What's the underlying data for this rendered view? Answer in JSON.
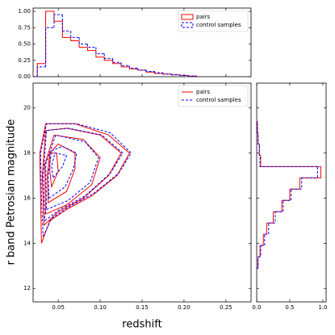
{
  "chart_data": [
    {
      "type": "histogram",
      "orientation": "vertical",
      "bins": [
        0.025,
        0.035,
        0.045,
        0.055,
        0.065,
        0.075,
        0.085,
        0.095,
        0.105,
        0.115,
        0.125,
        0.135,
        0.145,
        0.155,
        0.165,
        0.175,
        0.185,
        0.195,
        0.205,
        0.215
      ],
      "series": [
        {
          "name": "pairs",
          "color": "#ff0000",
          "linestyle": "solid",
          "values": [
            0.2,
            1.0,
            0.85,
            0.6,
            0.55,
            0.45,
            0.4,
            0.3,
            0.25,
            0.2,
            0.15,
            0.12,
            0.1,
            0.07,
            0.05,
            0.04,
            0.03,
            0.02,
            0.01
          ]
        },
        {
          "name": "control samples",
          "color": "#0000ff",
          "linestyle": "dashed",
          "values": [
            0.15,
            0.75,
            0.95,
            0.7,
            0.6,
            0.5,
            0.45,
            0.35,
            0.28,
            0.22,
            0.17,
            0.13,
            0.1,
            0.08,
            0.06,
            0.04,
            0.03,
            0.02,
            0.01
          ]
        }
      ],
      "xlim": [
        0.02,
        0.28
      ],
      "xticks": [
        0.05,
        {
          "value": 0.1,
          "label": "0.10"
        },
        0.15,
        {
          "value": 0.2,
          "label": "0.20"
        },
        0.25
      ],
      "xtick_labels": false,
      "ylim": [
        0,
        1.05
      ],
      "yticks": [
        {
          "value": 0,
          "label": "0.00"
        },
        0.25,
        {
          "value": 0.5,
          "label": "0.50"
        },
        0.75,
        {
          "value": 1,
          "label": "1.00"
        }
      ],
      "ytick_labels": true,
      "legend": "upper right",
      "legend_style": "patch"
    },
    {
      "type": "contour",
      "x_label": "redshift",
      "y_label": "r band Petrosian magnitude",
      "series": [
        {
          "name": "pairs",
          "color": "#ff0000",
          "linestyle": "solid",
          "contours": [
            {
              "x": [
                0.03,
                0.04,
                0.06,
                0.09,
                0.12,
                0.135,
                0.11,
                0.07,
                0.035,
                0.028,
                0.029
              ],
              "y": [
                14.0,
                15.0,
                15.5,
                16.1,
                17.0,
                18.0,
                18.8,
                19.3,
                19.3,
                18.0,
                16.0
              ]
            },
            {
              "x": [
                0.033,
                0.05,
                0.08,
                0.11,
                0.125,
                0.1,
                0.06,
                0.035,
                0.031
              ],
              "y": [
                14.8,
                15.4,
                16.0,
                17.0,
                18.0,
                18.8,
                19.1,
                19.0,
                17.0
              ]
            },
            {
              "x": [
                0.035,
                0.06,
                0.09,
                0.1,
                0.08,
                0.045,
                0.034
              ],
              "y": [
                15.3,
                15.7,
                16.6,
                17.8,
                18.6,
                18.8,
                17.5
              ]
            },
            {
              "x": [
                0.038,
                0.06,
                0.07,
                0.07,
                0.05,
                0.04,
                0.037
              ],
              "y": [
                15.8,
                16.3,
                17.3,
                18.0,
                18.4,
                18.0,
                17.0
              ]
            },
            {
              "x": [
                0.042,
                0.05,
                0.048,
                0.04,
                0.04
              ],
              "y": [
                16.5,
                17.2,
                18.0,
                18.0,
                17.2
              ]
            }
          ]
        },
        {
          "name": "control samples",
          "color": "#0000ff",
          "linestyle": "dashed",
          "contours": [
            {
              "x": [
                0.032,
                0.042,
                0.062,
                0.092,
                0.122,
                0.137,
                0.112,
                0.072,
                0.036,
                0.029,
                0.03
              ],
              "y": [
                14.3,
                15.1,
                15.6,
                16.2,
                17.1,
                18.0,
                18.9,
                19.3,
                19.3,
                18.0,
                16.0
              ]
            },
            {
              "x": [
                0.034,
                0.052,
                0.082,
                0.112,
                0.127,
                0.102,
                0.062,
                0.036,
                0.032
              ],
              "y": [
                15.0,
                15.5,
                16.1,
                17.1,
                18.0,
                18.8,
                19.1,
                19.0,
                17.0
              ]
            },
            {
              "x": [
                0.036,
                0.062,
                0.088,
                0.098,
                0.082,
                0.047,
                0.035
              ],
              "y": [
                15.5,
                15.9,
                16.7,
                17.8,
                18.5,
                18.8,
                17.5
              ]
            },
            {
              "x": [
                0.039,
                0.058,
                0.068,
                0.072,
                0.055,
                0.042,
                0.038
              ],
              "y": [
                16.0,
                16.5,
                17.3,
                18.0,
                18.3,
                18.1,
                17.0
              ]
            },
            {
              "x": [
                0.044,
                0.055,
                0.06,
                0.046,
                0.042
              ],
              "y": [
                16.9,
                17.4,
                17.9,
                18.0,
                17.4
              ]
            }
          ]
        }
      ],
      "xlim": [
        0.02,
        0.28
      ],
      "xticks": [
        0.05,
        {
          "value": 0.1,
          "label": "0.10"
        },
        0.15,
        {
          "value": 0.2,
          "label": "0.20"
        },
        0.25
      ],
      "xtick_labels": true,
      "ylim": [
        11.4,
        21.1
      ],
      "yticks": [
        12,
        14,
        16,
        18,
        20
      ],
      "ytick_labels": true,
      "legend": "upper right",
      "legend_style": "line"
    },
    {
      "type": "histogram",
      "orientation": "horizontal",
      "bins": [
        12.9,
        13.4,
        13.9,
        14.4,
        14.9,
        15.4,
        15.9,
        16.4,
        16.9,
        17.4,
        17.9,
        18.4,
        18.9,
        19.4
      ],
      "series": [
        {
          "name": "pairs",
          "color": "#ff0000",
          "linestyle": "solid",
          "values": [
            0.02,
            0.05,
            0.1,
            0.15,
            0.25,
            0.38,
            0.5,
            0.65,
            0.97,
            0.06,
            0.04,
            0.02,
            0.01
          ]
        },
        {
          "name": "control samples",
          "color": "#0000ff",
          "linestyle": "dashed",
          "values": [
            0.02,
            0.06,
            0.12,
            0.18,
            0.28,
            0.4,
            0.52,
            0.68,
            0.92,
            0.05,
            0.04,
            0.02,
            0.01
          ]
        }
      ],
      "xlim": [
        0,
        1.05
      ],
      "xticks": [
        {
          "value": 0,
          "label": "0.0"
        },
        0.5,
        {
          "value": 1,
          "label": "1.0"
        }
      ],
      "xtick_labels": true,
      "ylim": [
        11.4,
        21.1
      ],
      "yticks": [
        12,
        14,
        16,
        18,
        20
      ],
      "ytick_labels": false
    }
  ]
}
